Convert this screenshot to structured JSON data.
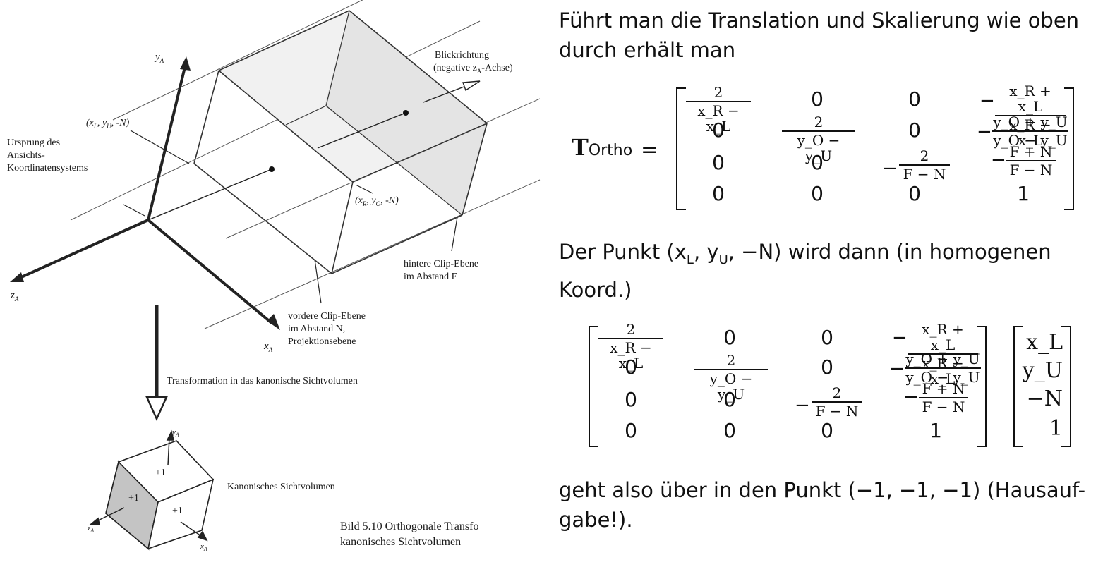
{
  "figure": {
    "labels": {
      "y_axis": "y",
      "y_axis_sub": "A",
      "z_axis": "z",
      "z_axis_sub": "A",
      "x_axis": "x",
      "x_axis_sub": "A",
      "point_left": "(x",
      "point_left_sub1": "L",
      "point_left_mid": ", y",
      "point_left_sub2": "U",
      "point_left_end": ", -N)",
      "point_right": "(x",
      "point_right_sub1": "R",
      "point_right_mid": ", y",
      "point_right_sub2": "O",
      "point_right_end": ", -N)",
      "origin_line1": "Ursprung des",
      "origin_line2": "Ansichts-",
      "origin_line3": "Koordinatensystems",
      "view_dir_line1": "Blickrichtung",
      "view_dir_line2": "(negative z",
      "view_dir_line2_sub": "A",
      "view_dir_line2_end": "-Achse)",
      "back_clip_line1": "hintere Clip-Ebene",
      "back_clip_line2": "im Abstand F",
      "front_clip_line1": "vordere Clip-Ebene",
      "front_clip_line2": "im Abstand N,",
      "front_clip_line3": "Projektionsebene",
      "transform": "Transformation in das kanonische Sichtvolumen",
      "canonical": "Kanonisches Sichtvolumen",
      "plus1_a": "+1",
      "plus1_b": "+1",
      "plus1_c": "+1",
      "caption_line1": "Bild 5.10    Orthogonale Transfo",
      "caption_line2": "kanonisches Sichtvolumen"
    }
  },
  "text": {
    "para1_line1": "Führt man die Translation und Skalierung wie oben",
    "para1_line2": "durch erhält man",
    "para2_line1": "Der Punkt (x",
    "para2_sub1": "L",
    "para2_mid1": ", y",
    "para2_sub2": "U",
    "para2_end1": ", −N) wird dann (in homogenen",
    "para2_line2": "Koord.)",
    "para3_line1": "geht also über in den Punkt (−1, −1, −1) (Hausauf-",
    "para3_line2": "gabe!)."
  },
  "matrix": {
    "label": "T",
    "label_sub": "Ortho",
    "equals": "=",
    "r1": {
      "c1_num": "2",
      "c1_den": "x_R − x_L",
      "c2": "0",
      "c3": "0",
      "c4_sign": "−",
      "c4_num": "x_R + x_L",
      "c4_den": "x_R − x_L"
    },
    "r2": {
      "c1": "0",
      "c2_num": "2",
      "c2_den": "y_O − y_U",
      "c3": "0",
      "c4_sign": "−",
      "c4_num": "y_O + y_U",
      "c4_den": "y_O − y_U"
    },
    "r3": {
      "c1": "0",
      "c2": "0",
      "c3_sign": "−",
      "c3_num": "2",
      "c3_den": "F − N",
      "c4_sign": "−",
      "c4_num": "F + N",
      "c4_den": "F − N"
    },
    "r4": {
      "c1": "0",
      "c2": "0",
      "c3": "0",
      "c4": "1"
    }
  },
  "vector": {
    "v1": "x_L",
    "v2": "y_U",
    "v3": "−N",
    "v4": "1"
  }
}
